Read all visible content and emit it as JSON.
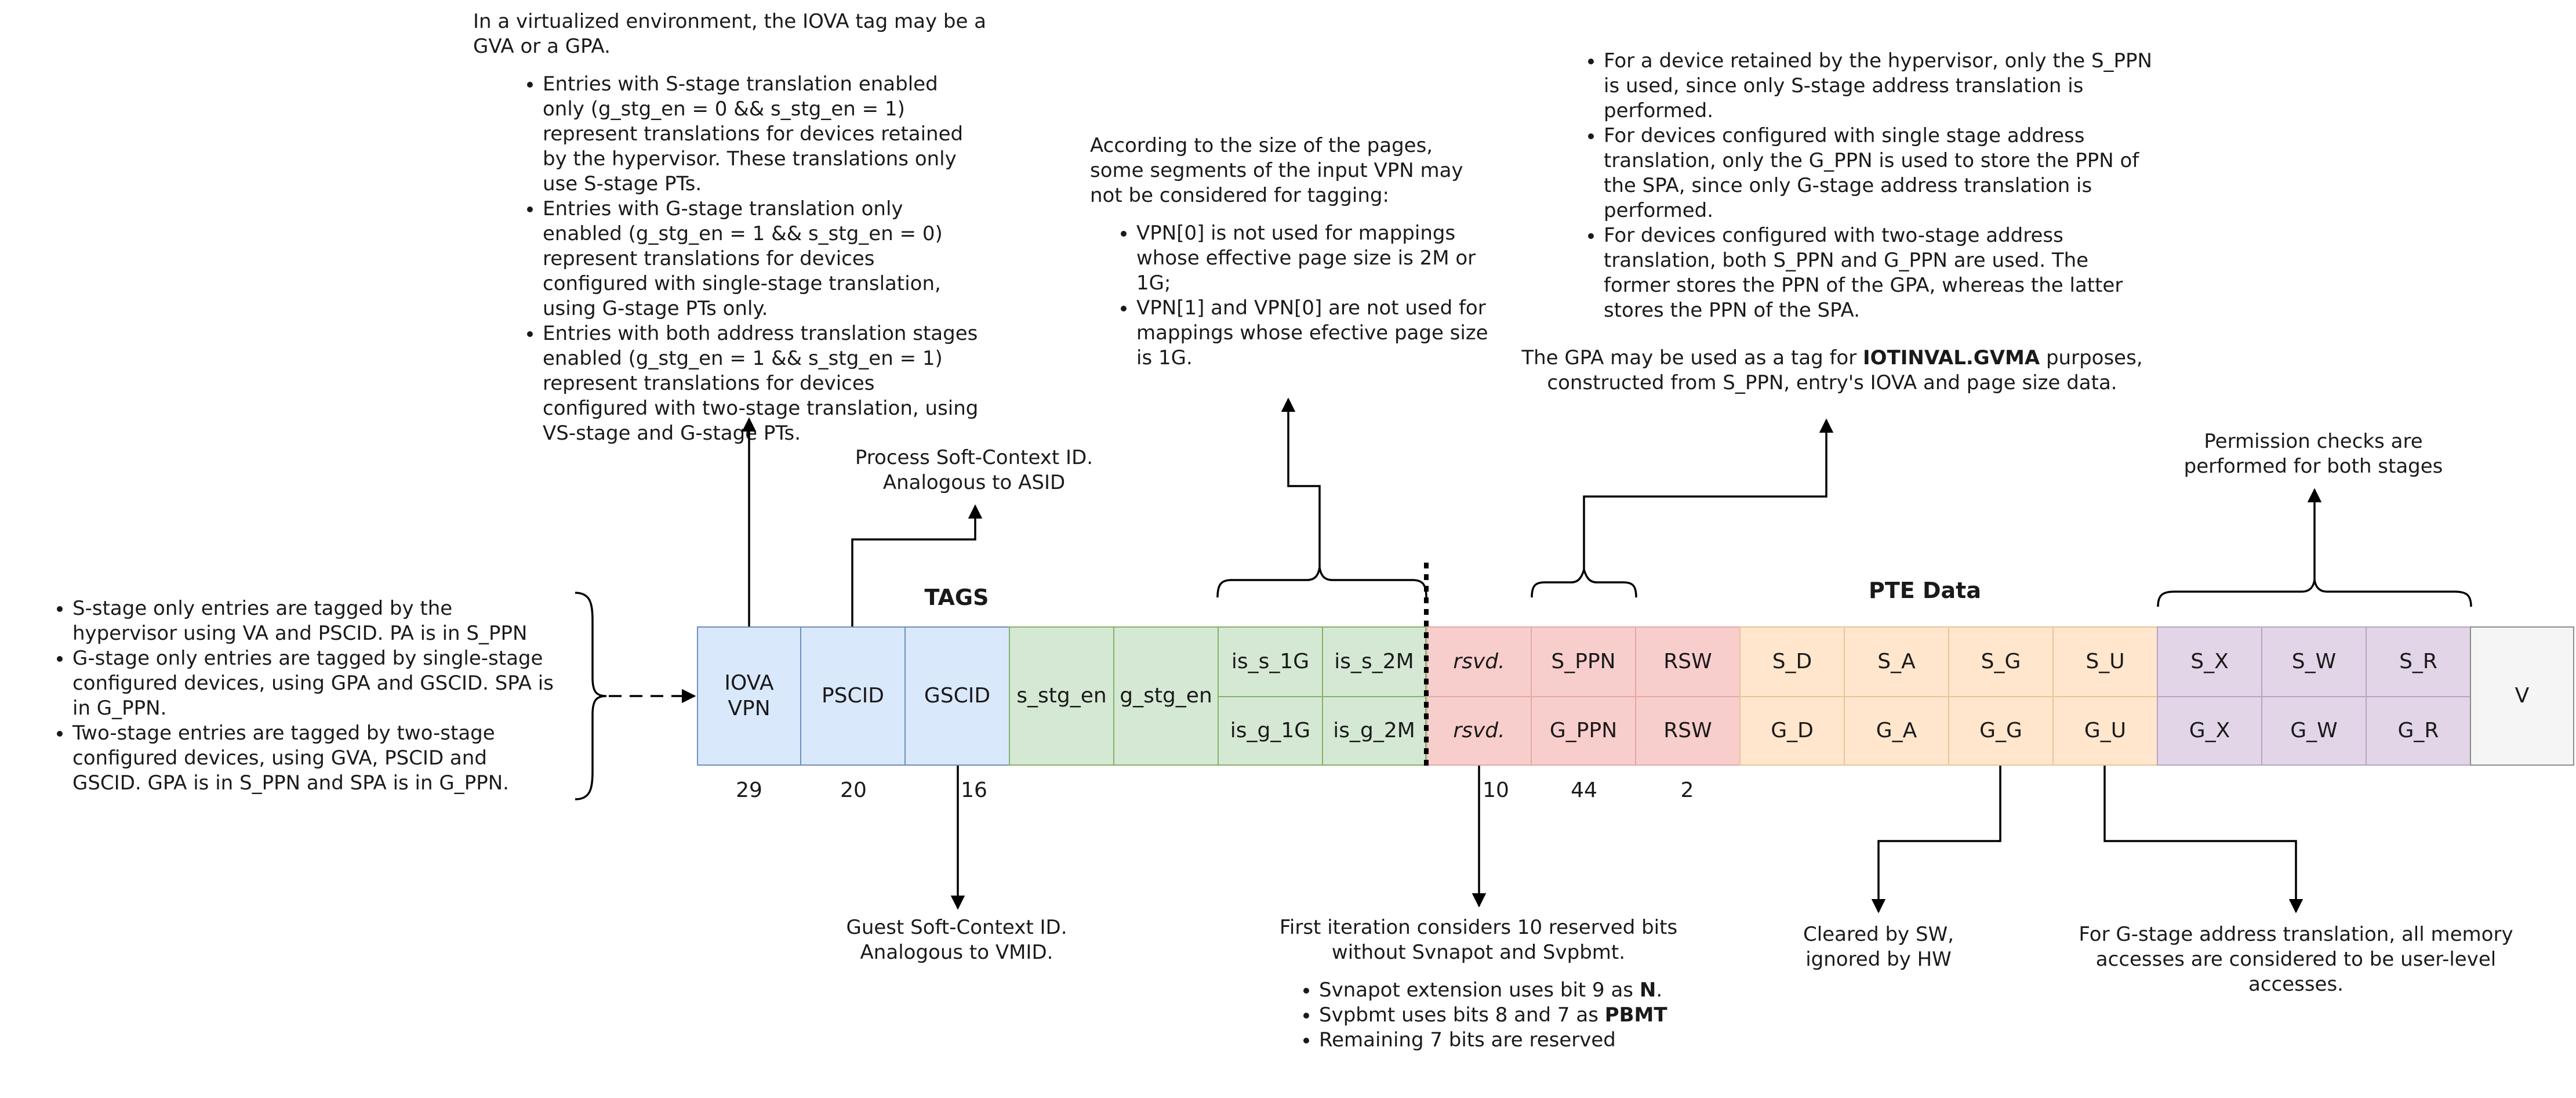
{
  "notes": {
    "virtualized_intro": "In a virtualized environment, the IOVA tag may be a GVA or a GPA.",
    "virtualized_items": [
      "Entries with S-stage translation enabled only (g_stg_en = 0 && s_stg_en = 1) represent translations for devices retained by the hypervisor. These translations only use S-stage PTs.",
      "Entries with G-stage translation only enabled (g_stg_en = 1 && s_stg_en = 0) represent translations for devices configured with single-stage translation, using G-stage PTs only.",
      "Entries with both address translation stages enabled (g_stg_en = 1 && s_stg_en = 1) represent translations for devices configured with two-stage translation, using VS-stage and G-stage PTs."
    ],
    "tagging_items": [
      "S-stage only entries are tagged by the hypervisor using VA and PSCID. PA is in S_PPN",
      "G-stage only entries are tagged by single-stage configured devices, using GPA and GSCID. SPA is in G_PPN.",
      "Two-stage entries are tagged by two-stage configured devices, using GVA, PSCID and GSCID. GPA is in S_PPN and SPA is in G_PPN."
    ],
    "pscid_note": "Process Soft-Context ID. Analogous to ASID",
    "gscid_note": "Guest Soft-Context ID. Analogous to VMID.",
    "vpn_intro": "According to the size of the pages, some segments of the input VPN may not be considered for tagging:",
    "vpn_items": [
      "VPN[0] is not used for mappings whose effective page size is 2M or 1G;",
      "VPN[1] and VPN[0] are not used for mappings whose efective page size is 1G."
    ],
    "ppn_items": [
      "For a device retained by the hypervisor, only the S_PPN is used, since only S-stage address translation is performed.",
      "For devices configured with single stage address translation, only the G_PPN is used to store the PPN of the SPA, since only G-stage address translation is performed.",
      "For devices configured with two-stage address translation, both S_PPN and G_PPN are used. The former stores the  PPN of the GPA, whereas the latter stores the PPN of the SPA."
    ],
    "gpa_note_pre": "The GPA may be used as a tag for ",
    "gpa_note_bold": "IOTINVAL.GVMA",
    "gpa_note_post": " purposes, constructed from S_PPN, entry's IOVA and page size data.",
    "perm_note": "Permission checks are performed for both stages",
    "rsvd_intro": "First iteration considers 10 reserved bits without Svnapot and Svpbmt.",
    "rsvd_item1_pre": "Svnapot extension uses bit 9 as ",
    "rsvd_item1_bold": "N",
    "rsvd_item2_pre": "Svpbmt uses bits 8 and 7 as ",
    "rsvd_item2_bold": "PBMT",
    "rsvd_item3": "Remaining 7 bits are reserved",
    "sw_note": "Cleared by SW, ignored by HW",
    "user_note": "For G-stage address translation, all memory accesses are considered to be user-level accesses."
  },
  "headers": {
    "tags": "TAGS",
    "pte": "PTE Data"
  },
  "fields": {
    "iova_vpn": "IOVA VPN",
    "pscid": "PSCID",
    "gscid": "GSCID",
    "s_stg_en": "s_stg_en",
    "g_stg_en": "g_stg_en",
    "is_s_1g": "is_s_1G",
    "is_s_2m": "is_s_2M",
    "is_g_1g": "is_g_1G",
    "is_g_2m": "is_g_2M",
    "rsvd_top": "rsvd.",
    "rsvd_bot": "rsvd.",
    "s_ppn": "S_PPN",
    "g_ppn": "G_PPN",
    "rsw_top": "RSW",
    "rsw_bot": "RSW",
    "s_d": "S_D",
    "s_a": "S_A",
    "s_g": "S_G",
    "s_u": "S_U",
    "g_d": "G_D",
    "g_a": "G_A",
    "g_g": "G_G",
    "g_u": "G_U",
    "s_x": "S_X",
    "s_w": "S_W",
    "s_r": "S_R",
    "g_x": "G_X",
    "g_w": "G_W",
    "g_r": "G_R",
    "v": "V"
  },
  "bit_widths": {
    "iova_vpn": "29",
    "pscid": "20",
    "gscid": "16",
    "rsvd": "10",
    "ppn": "44",
    "rsw": "2"
  },
  "colors": {
    "tag_blue": "#dae8fc",
    "tag_green": "#d5e8d4",
    "ppn_red": "#f8cecc",
    "flags_orange": "#ffe6cc",
    "perm_purple": "#e1d5e7",
    "valid_gray": "#f5f5f5"
  }
}
